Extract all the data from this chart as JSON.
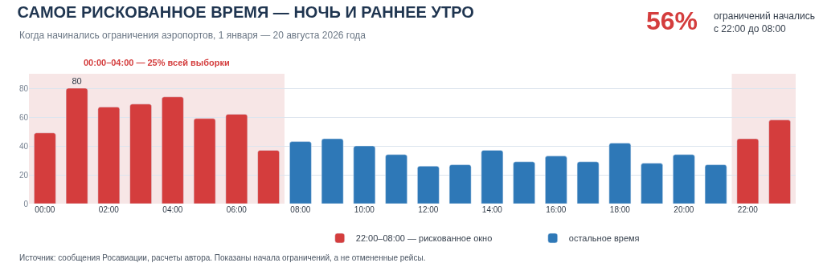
{
  "chart_data": {
    "type": "bar",
    "title": "САМОЕ РИСКОВАННОЕ ВРЕМЯ — НОЧЬ И РАННЕЕ УТРО",
    "subtitle": "Когда начинались ограничения аэропортов, 1 января — 20 августа 2026 года",
    "x": [
      0,
      1,
      2,
      3,
      4,
      5,
      6,
      7,
      8,
      9,
      10,
      11,
      12,
      13,
      14,
      15,
      16,
      17,
      18,
      19,
      20,
      21,
      22,
      23
    ],
    "series": [
      {
        "name": "22:00–08:00 — рискованное окно",
        "color": "#d43d3d",
        "values": [
          49,
          80,
          67,
          69,
          74,
          59,
          62,
          37,
          null,
          null,
          null,
          null,
          null,
          null,
          null,
          null,
          null,
          null,
          null,
          null,
          null,
          null,
          45,
          58
        ],
        "value_labels": [
          null,
          "80",
          null,
          null,
          null,
          null,
          null,
          null,
          null,
          null,
          null,
          null,
          null,
          null,
          null,
          null,
          null,
          null,
          null,
          null,
          null,
          null,
          null,
          null
        ]
      },
      {
        "name": "остальное время",
        "color": "#2e78b7",
        "values": [
          null,
          null,
          null,
          null,
          null,
          null,
          null,
          null,
          43,
          45,
          40,
          34,
          26,
          27,
          37,
          29,
          33,
          29,
          42,
          28,
          34,
          27,
          null,
          null
        ]
      }
    ],
    "xlim": [
      -0.5,
      23.5
    ],
    "xticks": [
      {
        "value": 0,
        "label": "00:00"
      },
      {
        "value": 2,
        "label": "02:00"
      },
      {
        "value": 4,
        "label": "04:00"
      },
      {
        "value": 6,
        "label": "06:00"
      },
      {
        "value": 8,
        "label": "08:00"
      },
      {
        "value": 10,
        "label": "10:00"
      },
      {
        "value": 12,
        "label": "12:00"
      },
      {
        "value": 14,
        "label": "14:00"
      },
      {
        "value": 16,
        "label": "16:00"
      },
      {
        "value": 18,
        "label": "18:00"
      },
      {
        "value": 20,
        "label": "20:00"
      },
      {
        "value": 22,
        "label": "22:00"
      }
    ],
    "ylim": [
      0,
      90
    ],
    "yticks": [
      0,
      20,
      40,
      60,
      80
    ],
    "bands": [
      {
        "axis": "x",
        "from": -0.5,
        "to": 7.5,
        "label": "00:00–04:00 — 25% всей выборки",
        "color": "#f7e6e6"
      },
      {
        "axis": "x",
        "from": 21.5,
        "to": 23.5,
        "label": null,
        "color": "#f7e6e6"
      }
    ],
    "annotations": [
      "56%",
      "ограничений начались\nс 22:00 до 08:00",
      "Источник: сообщения Росавиации, расчеты автора. Показаны начала ограничений, а не отмененные рейсы."
    ],
    "grid": "y",
    "legend": "bottom right"
  }
}
